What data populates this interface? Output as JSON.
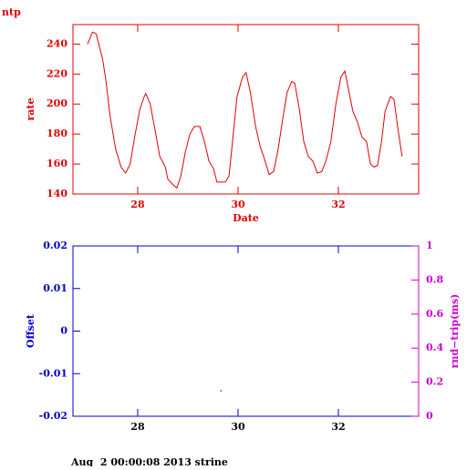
{
  "chart_data": [
    {
      "type": "line",
      "title": "ntp",
      "xlabel": "Date",
      "ylabel": "rate",
      "color": "#e00000",
      "xtick_color": "#e00000",
      "x": [
        27.0,
        27.1,
        27.17,
        27.3,
        27.37,
        27.45,
        27.56,
        27.67,
        27.76,
        27.85,
        27.95,
        28.04,
        28.13,
        28.16,
        28.25,
        28.35,
        28.44,
        28.49,
        28.55,
        28.6,
        28.71,
        28.78,
        28.86,
        28.95,
        29.04,
        29.13,
        29.24,
        29.33,
        29.42,
        29.51,
        29.58,
        29.75,
        29.82,
        29.89,
        29.98,
        30.09,
        30.16,
        30.25,
        30.35,
        30.44,
        30.53,
        30.62,
        30.71,
        30.8,
        30.89,
        30.98,
        31.07,
        31.13,
        31.22,
        31.31,
        31.4,
        31.49,
        31.58,
        31.67,
        31.76,
        31.85,
        31.95,
        32.05,
        32.13,
        32.2,
        32.29,
        32.38,
        32.47,
        32.56,
        32.64,
        32.71,
        32.78,
        32.86,
        32.93,
        33.04,
        33.11,
        33.18,
        33.27
      ],
      "values": [
        240,
        248,
        247,
        230,
        215,
        192,
        170,
        158,
        154,
        160,
        180,
        196,
        205,
        207,
        200,
        182,
        165,
        162,
        158,
        150,
        146,
        144,
        152,
        168,
        180,
        185,
        185,
        175,
        162,
        157,
        148,
        148,
        152,
        175,
        205,
        218,
        221,
        207,
        185,
        172,
        163,
        153,
        155,
        170,
        190,
        208,
        215,
        214,
        197,
        175,
        165,
        162,
        154,
        155,
        163,
        175,
        200,
        218,
        222,
        210,
        195,
        188,
        178,
        175,
        160,
        158,
        159,
        175,
        195,
        205,
        203,
        185,
        165
      ],
      "xlim": [
        26.71,
        33.6
      ],
      "xticks": [
        28,
        30,
        32
      ],
      "ylim": [
        140,
        253
      ],
      "yticks": [
        140,
        160,
        180,
        200,
        220,
        240
      ]
    },
    {
      "type": "scatter",
      "ylabel": "Offset",
      "y2label": "rnd−trip(ms)",
      "color": "#000000",
      "axis_color": "#0000cc",
      "y2_color": "#cc00cc",
      "xtick_color": "#000000",
      "x": [
        29.66
      ],
      "values": [
        -0.014
      ],
      "xlim": [
        26.71,
        33.6
      ],
      "xticks": [
        28,
        30,
        32
      ],
      "ylim": [
        -0.02,
        0.02
      ],
      "yticks": [
        -0.02,
        -0.01,
        0,
        0.01,
        0.02
      ],
      "y2lim": [
        0,
        1
      ],
      "y2ticks": [
        0,
        0.2,
        0.4,
        0.6,
        0.8,
        1
      ]
    }
  ],
  "footer": "Aug  2 00:00:08 2013 strine"
}
